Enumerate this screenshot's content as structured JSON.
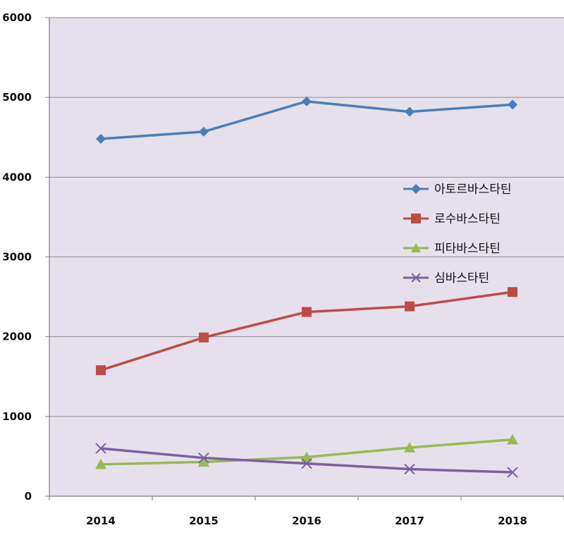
{
  "chart_data": {
    "type": "line",
    "categories": [
      "2014",
      "2015",
      "2016",
      "2017",
      "2018"
    ],
    "series": [
      {
        "name": "아토르바스타틴",
        "values": [
          4480,
          4570,
          4950,
          4820,
          4910
        ],
        "color": "#4a7ebb",
        "marker": "diamond"
      },
      {
        "name": "로수바스타틴",
        "values": [
          1580,
          1990,
          2310,
          2380,
          2560
        ],
        "color": "#be4b48",
        "marker": "square"
      },
      {
        "name": "피타바스타틴",
        "values": [
          400,
          430,
          490,
          610,
          710
        ],
        "color": "#98b954",
        "marker": "triangle"
      },
      {
        "name": "심바스타틴",
        "values": [
          600,
          480,
          410,
          340,
          300
        ],
        "color": "#7d60a0",
        "marker": "x"
      }
    ],
    "y_ticks": [
      "0",
      "1000",
      "2000",
      "3000",
      "4000",
      "5000",
      "6000"
    ],
    "ylim": [
      0,
      6000
    ],
    "grid": true,
    "legend_position": "right-middle",
    "plot_background": "#e6e0ec"
  }
}
